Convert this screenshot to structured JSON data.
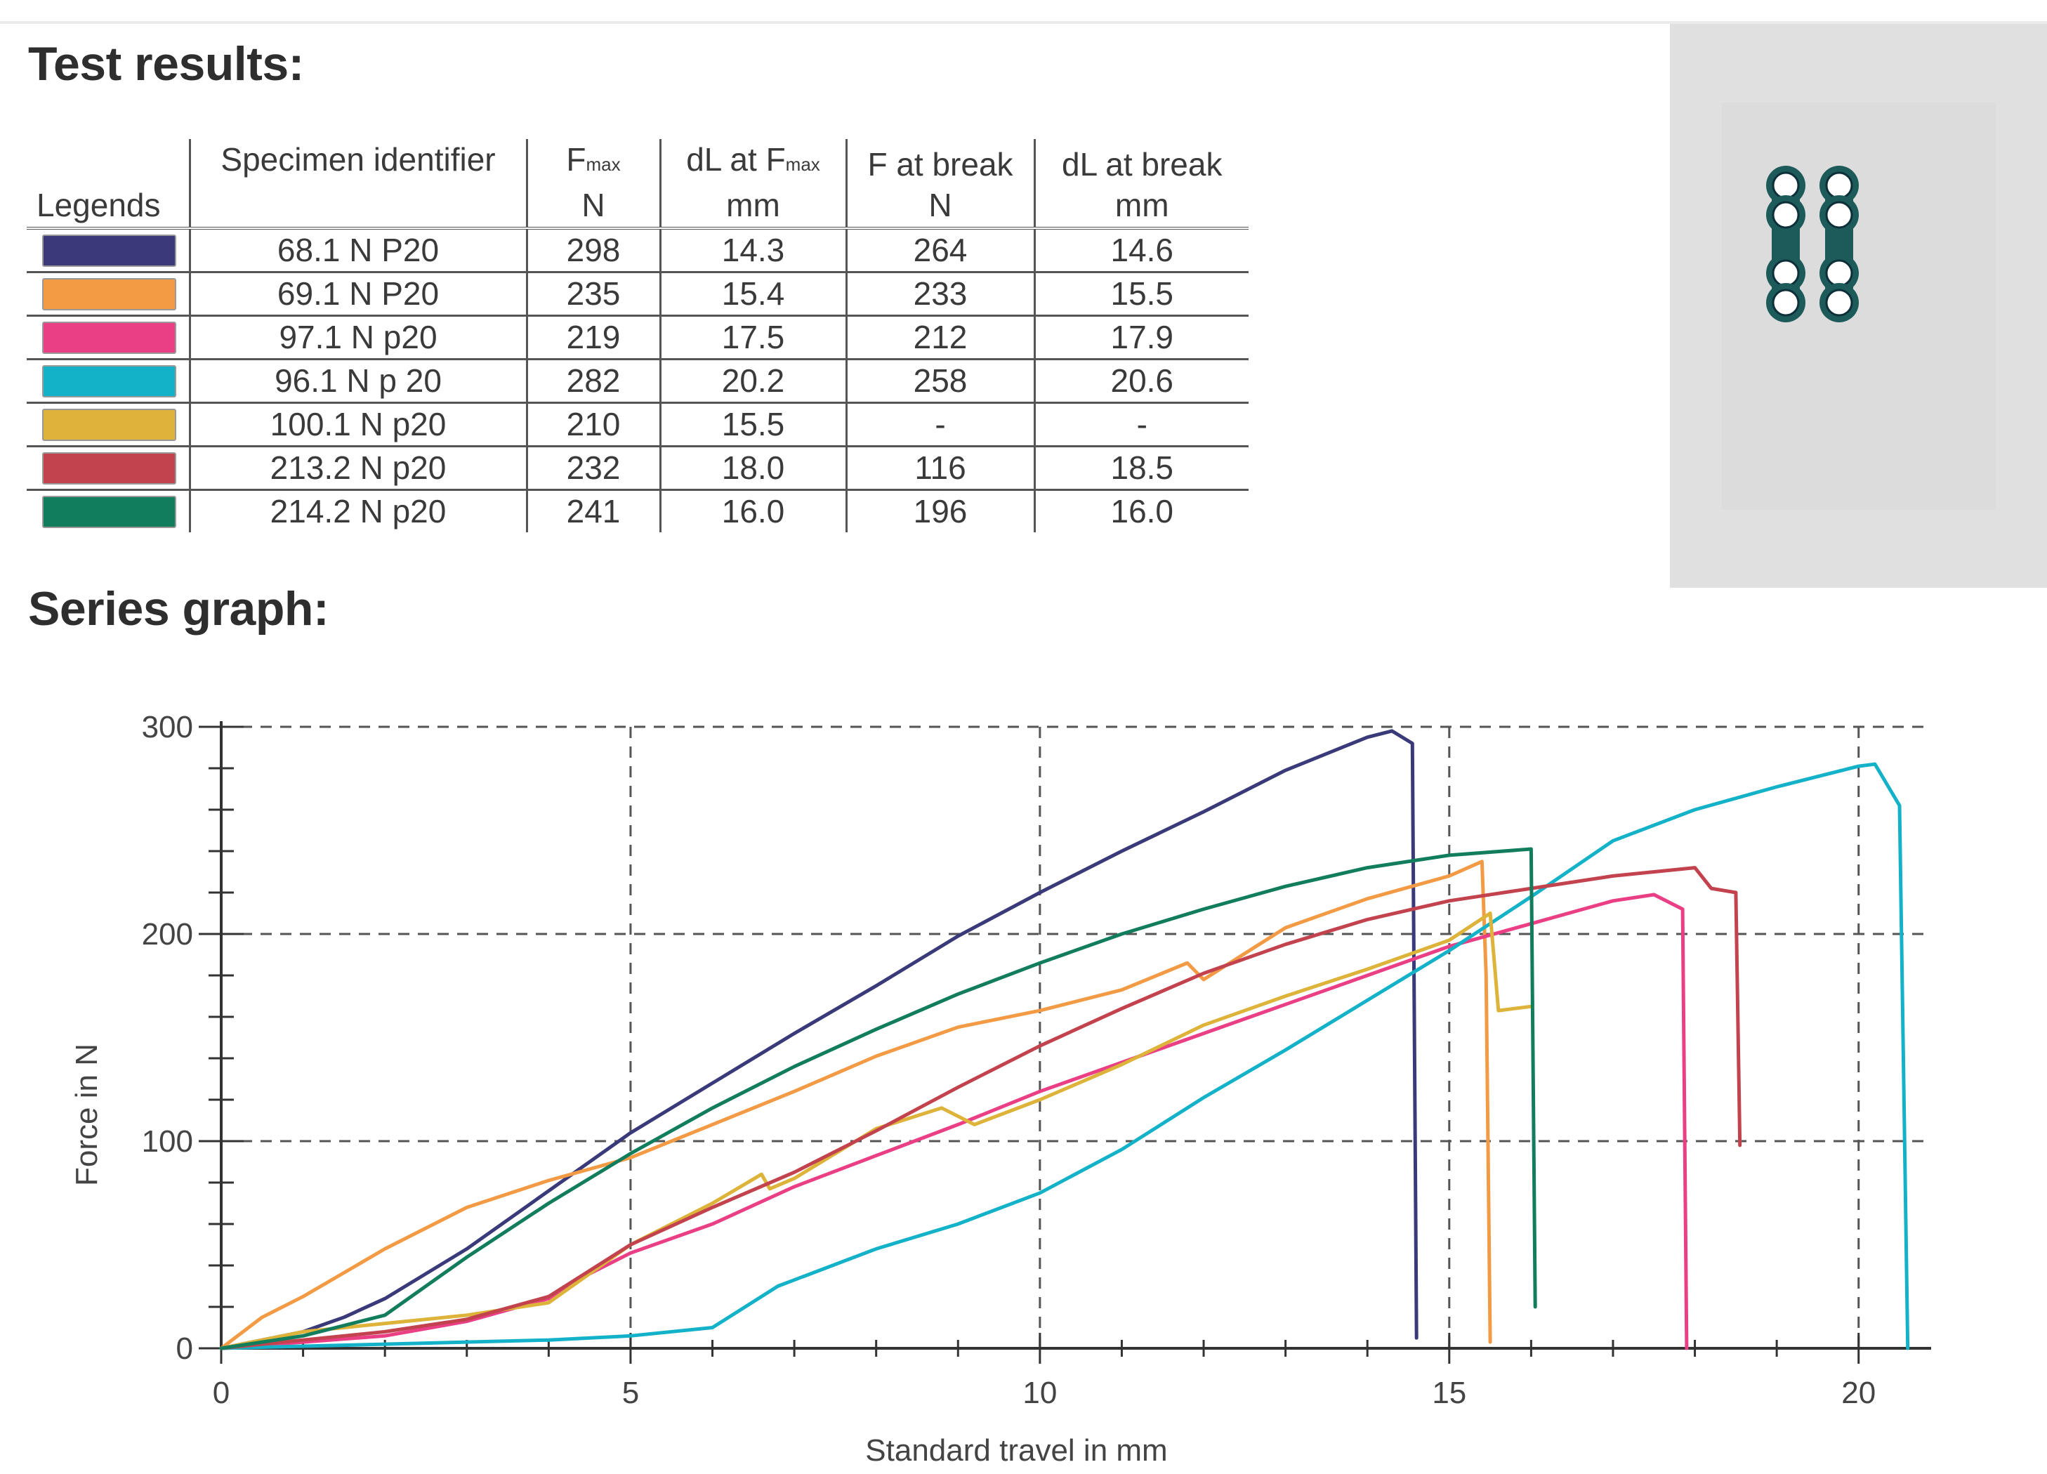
{
  "test_results": {
    "heading": "Test results:",
    "headers": {
      "legends": "Legends",
      "specimen": "Specimen identifier",
      "fmax_base": "F",
      "fmax_sub": "max",
      "fmax_unit": "N",
      "dl_fmax_base": "dL at F",
      "dl_fmax_sub": "max",
      "dl_fmax_unit": "mm",
      "f_break": "F at break",
      "f_break_unit": "N",
      "dl_break": "dL at break",
      "dl_break_unit": "mm"
    },
    "rows": [
      {
        "id": "68.1 N P20",
        "fmax": "298",
        "dl_fmax": "14.3",
        "f_break": "264",
        "dl_break": "14.6",
        "color": "#3a3a7a"
      },
      {
        "id": "69.1 N P20",
        "fmax": "235",
        "dl_fmax": "15.4",
        "f_break": "233",
        "dl_break": "15.5",
        "color": "#f39a45"
      },
      {
        "id": "97.1 N p20",
        "fmax": "219",
        "dl_fmax": "17.5",
        "f_break": "212",
        "dl_break": "17.9",
        "color": "#ea3f85"
      },
      {
        "id": "96.1 N p 20",
        "fmax": "282",
        "dl_fmax": "20.2",
        "f_break": "258",
        "dl_break": "20.6",
        "color": "#14b2c8"
      },
      {
        "id": "100.1 N p20",
        "fmax": "210",
        "dl_fmax": "15.5",
        "f_break": "-",
        "dl_break": "-",
        "color": "#ddb33a"
      },
      {
        "id": "213.2 N p20",
        "fmax": "232",
        "dl_fmax": "18.0",
        "f_break": "116",
        "dl_break": "18.5",
        "color": "#c2434d"
      },
      {
        "id": "214.2 N p20",
        "fmax": "241",
        "dl_fmax": "16.0",
        "f_break": "196",
        "dl_break": "16.0",
        "color": "#127d5d"
      }
    ]
  },
  "specimen_image": {
    "icon": "bone-plate-icon",
    "color": "#1d5a5a"
  },
  "series_heading": "Series graph:",
  "chart_data": {
    "type": "line",
    "xlabel": "Standard travel in mm",
    "ylabel": "Force in N",
    "xlim": [
      0,
      20.8
    ],
    "ylim": [
      0,
      300
    ],
    "x_ticks": [
      0,
      5,
      10,
      15,
      20
    ],
    "y_ticks": [
      0,
      100,
      200,
      300
    ],
    "grid": true,
    "series": [
      {
        "name": "68.1 N P20",
        "color": "#3a3a7a",
        "points": [
          [
            0,
            0
          ],
          [
            1,
            8
          ],
          [
            1.5,
            15
          ],
          [
            2,
            24
          ],
          [
            3,
            48
          ],
          [
            4,
            76
          ],
          [
            5,
            104
          ],
          [
            6,
            128
          ],
          [
            7,
            152
          ],
          [
            8,
            175
          ],
          [
            9,
            199
          ],
          [
            10,
            220
          ],
          [
            11,
            240
          ],
          [
            12,
            259
          ],
          [
            13,
            279
          ],
          [
            14,
            295
          ],
          [
            14.3,
            298
          ],
          [
            14.55,
            292
          ],
          [
            14.6,
            5
          ]
        ]
      },
      {
        "name": "69.1 N P20",
        "color": "#f39a45",
        "points": [
          [
            0,
            0
          ],
          [
            0.5,
            15
          ],
          [
            1,
            25
          ],
          [
            2,
            48
          ],
          [
            3,
            68
          ],
          [
            4,
            81
          ],
          [
            5,
            92
          ],
          [
            6,
            108
          ],
          [
            7,
            124
          ],
          [
            8,
            141
          ],
          [
            9,
            155
          ],
          [
            10,
            163
          ],
          [
            11,
            173
          ],
          [
            11.8,
            186
          ],
          [
            12,
            178
          ],
          [
            13,
            203
          ],
          [
            14,
            217
          ],
          [
            15,
            228
          ],
          [
            15.4,
            235
          ],
          [
            15.45,
            180
          ],
          [
            15.5,
            3
          ]
        ]
      },
      {
        "name": "97.1 N p20",
        "color": "#ea3f85",
        "points": [
          [
            0,
            0
          ],
          [
            1,
            3
          ],
          [
            2,
            6
          ],
          [
            3,
            13
          ],
          [
            4,
            24
          ],
          [
            4.5,
            36
          ],
          [
            5,
            46
          ],
          [
            6,
            60
          ],
          [
            7,
            78
          ],
          [
            8,
            93
          ],
          [
            9,
            108
          ],
          [
            10,
            124
          ],
          [
            11,
            138
          ],
          [
            12,
            152
          ],
          [
            13,
            166
          ],
          [
            14,
            180
          ],
          [
            15,
            194
          ],
          [
            16,
            205
          ],
          [
            17,
            216
          ],
          [
            17.5,
            219
          ],
          [
            17.85,
            212
          ],
          [
            17.9,
            0
          ]
        ]
      },
      {
        "name": "96.1 N p 20",
        "color": "#14b2c8",
        "points": [
          [
            0,
            0
          ],
          [
            1,
            1
          ],
          [
            2,
            2
          ],
          [
            3,
            3
          ],
          [
            4,
            4
          ],
          [
            5,
            6
          ],
          [
            6,
            10
          ],
          [
            6.8,
            30
          ],
          [
            8,
            48
          ],
          [
            9,
            60
          ],
          [
            10,
            75
          ],
          [
            11,
            96
          ],
          [
            12,
            121
          ],
          [
            13,
            144
          ],
          [
            14,
            168
          ],
          [
            15,
            192
          ],
          [
            16,
            218
          ],
          [
            17,
            245
          ],
          [
            18,
            260
          ],
          [
            19,
            271
          ],
          [
            20,
            281
          ],
          [
            20.2,
            282
          ],
          [
            20.5,
            262
          ],
          [
            20.6,
            0
          ]
        ]
      },
      {
        "name": "100.1 N p20",
        "color": "#ddb33a",
        "points": [
          [
            0,
            0
          ],
          [
            1,
            8
          ],
          [
            2,
            12
          ],
          [
            3,
            16
          ],
          [
            4,
            22
          ],
          [
            5,
            50
          ],
          [
            6,
            70
          ],
          [
            6.6,
            84
          ],
          [
            6.7,
            77
          ],
          [
            7,
            82
          ],
          [
            8,
            106
          ],
          [
            8.8,
            116
          ],
          [
            9.2,
            108
          ],
          [
            10,
            120
          ],
          [
            11,
            137
          ],
          [
            12,
            156
          ],
          [
            13,
            170
          ],
          [
            14,
            183
          ],
          [
            15,
            197
          ],
          [
            15.5,
            210
          ],
          [
            15.6,
            163
          ],
          [
            16,
            165
          ]
        ]
      },
      {
        "name": "213.2 N p20",
        "color": "#c2434d",
        "points": [
          [
            0,
            0
          ],
          [
            1,
            4
          ],
          [
            2,
            8
          ],
          [
            3,
            14
          ],
          [
            4,
            25
          ],
          [
            5,
            50
          ],
          [
            6,
            68
          ],
          [
            7,
            85
          ],
          [
            8,
            105
          ],
          [
            9,
            126
          ],
          [
            10,
            146
          ],
          [
            11,
            164
          ],
          [
            12,
            181
          ],
          [
            13,
            195
          ],
          [
            14,
            207
          ],
          [
            15,
            216
          ],
          [
            16,
            222
          ],
          [
            17,
            228
          ],
          [
            18,
            232
          ],
          [
            18.2,
            222
          ],
          [
            18.5,
            220
          ],
          [
            18.55,
            98
          ]
        ]
      },
      {
        "name": "214.2 N p20",
        "color": "#127d5d",
        "points": [
          [
            0,
            0
          ],
          [
            1,
            6
          ],
          [
            2,
            16
          ],
          [
            3,
            44
          ],
          [
            4,
            70
          ],
          [
            5,
            94
          ],
          [
            6,
            116
          ],
          [
            7,
            136
          ],
          [
            8,
            154
          ],
          [
            9,
            171
          ],
          [
            10,
            186
          ],
          [
            11,
            200
          ],
          [
            12,
            212
          ],
          [
            13,
            223
          ],
          [
            14,
            232
          ],
          [
            15,
            238
          ],
          [
            16,
            241
          ],
          [
            16.05,
            20
          ]
        ]
      }
    ]
  }
}
